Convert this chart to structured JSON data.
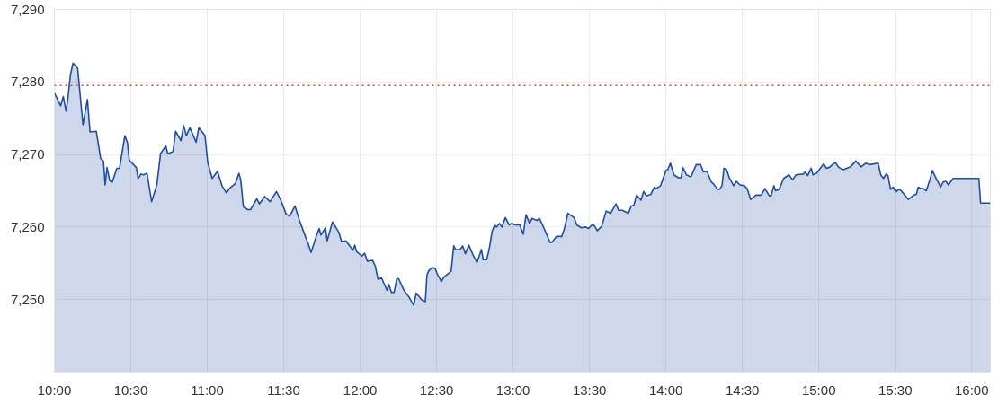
{
  "chart_data": {
    "type": "area",
    "x": [
      10.0,
      10.041,
      10.058,
      10.076,
      10.087,
      10.105,
      10.122,
      10.152,
      10.187,
      10.216,
      10.233,
      10.274,
      10.303,
      10.321,
      10.332,
      10.344,
      10.362,
      10.379,
      10.408,
      10.426,
      10.461,
      10.478,
      10.49,
      10.536,
      10.548,
      10.566,
      10.583,
      10.606,
      10.636,
      10.671,
      10.694,
      10.729,
      10.741,
      10.776,
      10.793,
      10.828,
      10.845,
      10.863,
      10.886,
      10.927,
      10.945,
      10.985,
      11.003,
      11.032,
      11.067,
      11.096,
      11.125,
      11.149,
      11.184,
      11.207,
      11.219,
      11.236,
      11.265,
      11.283,
      11.324,
      11.341,
      11.376,
      11.411,
      11.452,
      11.481,
      11.516,
      11.539,
      11.574,
      11.603,
      11.633,
      11.662,
      11.679,
      11.714,
      11.732,
      11.743,
      11.773,
      11.784,
      11.819,
      11.86,
      11.878,
      11.907,
      11.924,
      11.953,
      11.965,
      11.977,
      12.012,
      12.029,
      12.047,
      12.082,
      12.099,
      12.117,
      12.14,
      12.175,
      12.187,
      12.204,
      12.222,
      12.239,
      12.251,
      12.286,
      12.321,
      12.35,
      12.367,
      12.402,
      12.426,
      12.437,
      12.449,
      12.472,
      12.49,
      12.507,
      12.531,
      12.548,
      12.595,
      12.612,
      12.624,
      12.653,
      12.671,
      12.688,
      12.711,
      12.735,
      12.764,
      12.793,
      12.805,
      12.828,
      12.845,
      12.863,
      12.88,
      12.892,
      12.91,
      12.927,
      12.95,
      12.974,
      12.991,
      13.015,
      13.044,
      13.067,
      13.085,
      13.108,
      13.125,
      13.155,
      13.172,
      13.201,
      13.242,
      13.254,
      13.283,
      13.318,
      13.335,
      13.359,
      13.399,
      13.417,
      13.446,
      13.475,
      13.493,
      13.522,
      13.534,
      13.551,
      13.58,
      13.609,
      13.638,
      13.673,
      13.691,
      13.714,
      13.755,
      13.773,
      13.79,
      13.808,
      13.837,
      13.854,
      13.872,
      13.901,
      13.924,
      13.936,
      13.965,
      14.0,
      14.012,
      14.029,
      14.052,
      14.082,
      14.099,
      14.111,
      14.134,
      14.163,
      14.198,
      14.227,
      14.245,
      14.268,
      14.297,
      14.309,
      14.338,
      14.35,
      14.367,
      14.379,
      14.397,
      14.414,
      14.443,
      14.461,
      14.484,
      14.513,
      14.531,
      14.554,
      14.589,
      14.624,
      14.647,
      14.676,
      14.688,
      14.706,
      14.717,
      14.741,
      14.77,
      14.805,
      14.828,
      14.851,
      14.898,
      14.91,
      14.927,
      14.95,
      14.962,
      14.985,
      15.032,
      15.05,
      15.067,
      15.108,
      15.131,
      15.16,
      15.207,
      15.242,
      15.277,
      15.306,
      15.335,
      15.388,
      15.405,
      15.423,
      15.44,
      15.452,
      15.469,
      15.487,
      15.504,
      15.522,
      15.539,
      15.586,
      15.621,
      15.638,
      15.65,
      15.668,
      15.685,
      15.703,
      15.726,
      15.743,
      15.767,
      15.778,
      15.796,
      15.813,
      15.831,
      15.848,
      15.878,
      16.047,
      16.058,
      16.122
    ],
    "series": [
      {
        "color": "#1f4e9f",
        "values": [
          7278.5,
          7276.7,
          7278.0,
          7276.0,
          7277.5,
          7281.0,
          7282.6,
          7281.9,
          7274.1,
          7277.6,
          7273.1,
          7273.2,
          7269.4,
          7269.1,
          7265.8,
          7268.2,
          7266.4,
          7266.2,
          7268.1,
          7268.1,
          7272.6,
          7271.6,
          7269.2,
          7268.2,
          7266.7,
          7267.3,
          7267.2,
          7267.4,
          7263.5,
          7265.9,
          7270.1,
          7271.2,
          7270.1,
          7270.4,
          7273.2,
          7271.9,
          7274.0,
          7272.6,
          7273.7,
          7271.7,
          7273.7,
          7272.6,
          7268.9,
          7266.7,
          7267.7,
          7265.7,
          7264.7,
          7265.4,
          7266.0,
          7267.4,
          7266.5,
          7262.8,
          7262.4,
          7262.4,
          7263.9,
          7263.2,
          7264.2,
          7263.5,
          7264.9,
          7263.7,
          7261.8,
          7261.5,
          7262.9,
          7260.9,
          7259.2,
          7257.6,
          7256.5,
          7258.8,
          7259.8,
          7258.9,
          7259.9,
          7258.1,
          7260.7,
          7259.3,
          7258.0,
          7258.1,
          7257.6,
          7256.8,
          7257.5,
          7256.6,
          7256.0,
          7256.4,
          7255.3,
          7255.4,
          7254.6,
          7252.8,
          7253.0,
          7251.3,
          7252.1,
          7251.0,
          7251.0,
          7252.8,
          7252.9,
          7251.3,
          7250.3,
          7249.2,
          7250.9,
          7250.0,
          7249.7,
          7253.4,
          7254.0,
          7254.4,
          7254.3,
          7253.4,
          7252.5,
          7253.1,
          7253.9,
          7257.4,
          7256.9,
          7256.9,
          7257.4,
          7256.3,
          7257.5,
          7256.3,
          7255.1,
          7256.9,
          7255.5,
          7255.5,
          7257.1,
          7259.4,
          7260.3,
          7260.0,
          7260.5,
          7260.0,
          7261.3,
          7260.3,
          7260.5,
          7260.3,
          7260.3,
          7259.0,
          7261.7,
          7260.5,
          7261.2,
          7260.9,
          7261.2,
          7259.9,
          7257.9,
          7257.9,
          7258.7,
          7258.7,
          7259.7,
          7261.9,
          7261.3,
          7260.3,
          7259.9,
          7260.0,
          7259.8,
          7260.4,
          7260.1,
          7259.5,
          7260.1,
          7262.2,
          7261.9,
          7263.2,
          7262.3,
          7262.3,
          7261.9,
          7262.9,
          7263.0,
          7264.4,
          7263.7,
          7264.9,
          7264.3,
          7264.5,
          7265.5,
          7265.3,
          7265.7,
          7267.8,
          7267.9,
          7268.8,
          7267.2,
          7266.8,
          7266.8,
          7268.2,
          7267.2,
          7266.9,
          7268.6,
          7268.6,
          7267.6,
          7267.7,
          7266.2,
          7266.0,
          7265.2,
          7265.2,
          7265.7,
          7268.1,
          7267.9,
          7266.8,
          7265.7,
          7266.3,
          7265.8,
          7265.7,
          7265.3,
          7263.8,
          7264.4,
          7264.4,
          7265.3,
          7264.3,
          7264.3,
          7265.7,
          7265.0,
          7265.2,
          7266.7,
          7267.2,
          7266.5,
          7267.2,
          7267.3,
          7267.6,
          7267.1,
          7268.1,
          7267.2,
          7267.4,
          7268.7,
          7268.1,
          7268.2,
          7268.9,
          7268.2,
          7267.9,
          7268.3,
          7269.1,
          7268.3,
          7268.8,
          7268.6,
          7268.8,
          7267.2,
          7266.7,
          7267.3,
          7267.1,
          7265.2,
          7265.5,
          7264.8,
          7265.2,
          7265.0,
          7263.8,
          7264.4,
          7264.5,
          7265.5,
          7265.3,
          7265.3,
          7265.0,
          7266.5,
          7267.8,
          7266.7,
          7266.3,
          7265.5,
          7266.2,
          7266.3,
          7265.8,
          7266.7,
          7266.7,
          7263.3,
          7263.3
        ]
      }
    ],
    "xlim": [
      10,
      16.122
    ],
    "xticks": [
      {
        "value": 10,
        "label": "10:00"
      },
      {
        "value": 10.5,
        "label": "10:30"
      },
      {
        "value": 11,
        "label": "11:00"
      },
      {
        "value": 11.5,
        "label": "11:30"
      },
      {
        "value": 12,
        "label": "12:00"
      },
      {
        "value": 12.5,
        "label": "12:30"
      },
      {
        "value": 13,
        "label": "13:00"
      },
      {
        "value": 13.5,
        "label": "13:30"
      },
      {
        "value": 14,
        "label": "14:00"
      },
      {
        "value": 14.5,
        "label": "14:30"
      },
      {
        "value": 15,
        "label": "15:00"
      },
      {
        "value": 15.5,
        "label": "15:30"
      },
      {
        "value": 16,
        "label": "16:00"
      }
    ],
    "ylim": [
      7240,
      7290
    ],
    "yticks": [
      {
        "value": 7250,
        "label": "7,250"
      },
      {
        "value": 7260,
        "label": "7,260"
      },
      {
        "value": 7270,
        "label": "7,270"
      },
      {
        "value": 7280,
        "label": "7,280"
      },
      {
        "value": 7290,
        "label": "7,290"
      }
    ],
    "ref_lines": [
      {
        "axis": "y",
        "value": 7279.5,
        "color": "#e8392f",
        "line_style": "dotted"
      }
    ],
    "grid": true,
    "line_style": "solid"
  }
}
